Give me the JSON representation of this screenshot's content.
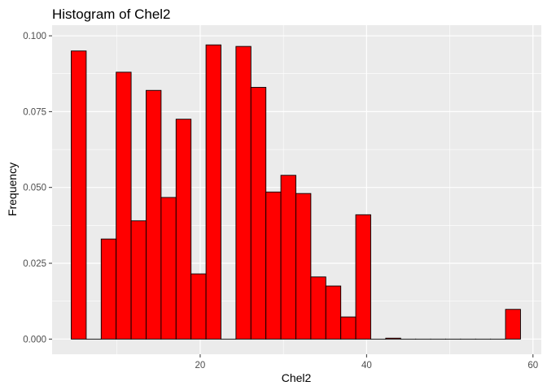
{
  "chart_data": {
    "type": "bar",
    "title": "Histogram of Chel2",
    "xlabel": "Chel2",
    "ylabel": "Frequency",
    "xlim": [
      2.2,
      61.0
    ],
    "ylim": [
      -0.005,
      0.1035
    ],
    "x_ticks": [
      20,
      40,
      60
    ],
    "x_tick_labels": [
      "20",
      "40",
      "60"
    ],
    "y_ticks": [
      0,
      0.025,
      0.05,
      0.075,
      0.1
    ],
    "y_tick_labels": [
      "0.000",
      "0.025",
      "0.050",
      "0.075",
      "0.100"
    ],
    "bin_width": 1.8,
    "bin_centers": [
      5.4,
      7.2,
      9.0,
      10.8,
      12.6,
      14.4,
      16.2,
      18.0,
      19.8,
      21.6,
      23.4,
      25.2,
      27.0,
      28.8,
      30.6,
      32.4,
      34.2,
      36.0,
      37.8,
      39.6,
      41.4,
      43.2,
      45.0,
      46.8,
      48.6,
      50.4,
      52.2,
      54.0,
      55.8,
      57.6
    ],
    "values": [
      0.095,
      0.0,
      0.033,
      0.088,
      0.039,
      0.082,
      0.0467,
      0.0725,
      0.0215,
      0.097,
      0.0,
      0.0965,
      0.083,
      0.0485,
      0.054,
      0.048,
      0.0205,
      0.0175,
      0.0073,
      0.041,
      0.0,
      0.0003,
      0.0,
      0.0,
      0.0,
      0.0,
      0.0,
      0.0,
      0.0,
      0.0098
    ],
    "bar_fill": "#ff0000",
    "bar_stroke": "#000000",
    "panel_background": "#ebebeb",
    "grid_color": "#ffffff",
    "grid": true,
    "legend": "none"
  }
}
